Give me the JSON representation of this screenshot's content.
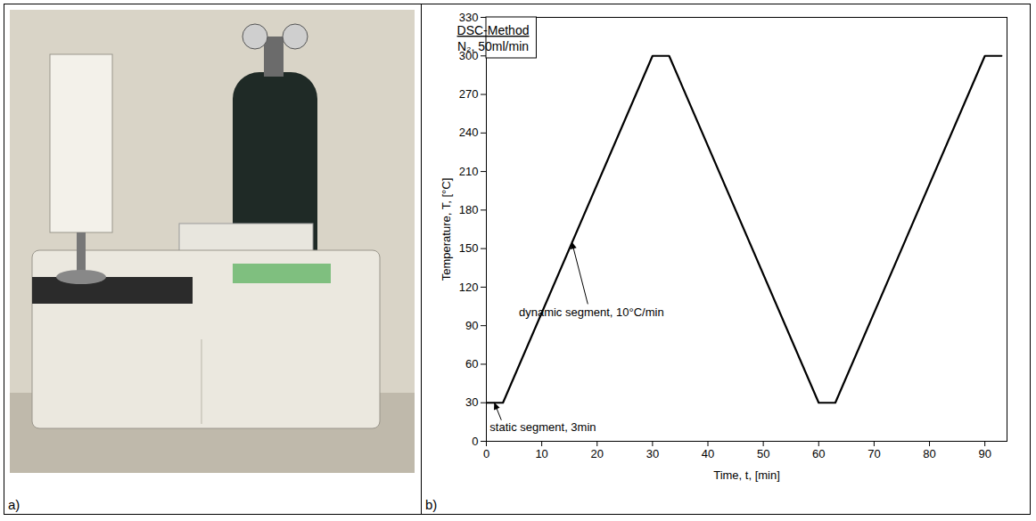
{
  "photo": {
    "panel_label": "a)"
  },
  "chart_data": {
    "type": "line",
    "panel_label": "b)",
    "x_label": "Time, t, [min]",
    "y_label": "Temperature, T, [°C]",
    "x": [
      0,
      3,
      30,
      33,
      60,
      63,
      90,
      93
    ],
    "values": [
      30,
      30,
      300,
      300,
      30,
      30,
      300,
      300
    ],
    "color": "#000000",
    "xlim": [
      0,
      94
    ],
    "xticks": [
      0,
      10,
      20,
      30,
      40,
      50,
      60,
      70,
      80,
      90
    ],
    "ylim": [
      0,
      330
    ],
    "yticks": [
      0,
      30,
      60,
      90,
      120,
      150,
      180,
      210,
      240,
      270,
      300,
      330
    ],
    "grid": false,
    "method_box": {
      "title": "DSC-Method",
      "text": "N₂, 50ml/min"
    },
    "annotations": [
      {
        "text": "dynamic segment, 10°C/min",
        "x": 15.5,
        "y": 155
      },
      {
        "text": "static segment, 3min",
        "x": 1.5,
        "y": 30
      }
    ]
  }
}
